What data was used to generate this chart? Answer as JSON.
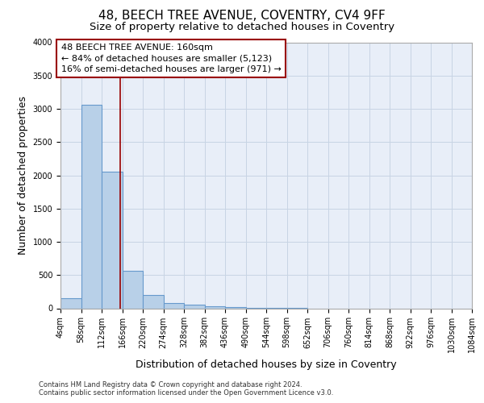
{
  "title": "48, BEECH TREE AVENUE, COVENTRY, CV4 9FF",
  "subtitle": "Size of property relative to detached houses in Coventry",
  "xlabel": "Distribution of detached houses by size in Coventry",
  "ylabel": "Number of detached properties",
  "footer_line1": "Contains HM Land Registry data © Crown copyright and database right 2024.",
  "footer_line2": "Contains public sector information licensed under the Open Government Licence v3.0.",
  "bin_edges": [
    4,
    58,
    112,
    166,
    220,
    274,
    328,
    382,
    436,
    490,
    544,
    598,
    652,
    706,
    760,
    814,
    868,
    922,
    976,
    1030,
    1084
  ],
  "bar_heights": [
    150,
    3060,
    2060,
    560,
    200,
    80,
    55,
    35,
    15,
    5,
    2,
    1,
    0,
    0,
    0,
    0,
    0,
    0,
    0,
    0
  ],
  "bar_color": "#b8d0e8",
  "bar_edge_color": "#6699cc",
  "grid_color": "#c8d4e4",
  "bg_color": "#e8eef8",
  "property_size": 160,
  "vline_color": "#990000",
  "annotation_text": "48 BEECH TREE AVENUE: 160sqm\n← 84% of detached houses are smaller (5,123)\n16% of semi-detached houses are larger (971) →",
  "annotation_box_color": "#990000",
  "ylim": [
    0,
    4000
  ],
  "yticks": [
    0,
    500,
    1000,
    1500,
    2000,
    2500,
    3000,
    3500,
    4000
  ],
  "title_fontsize": 11,
  "subtitle_fontsize": 9.5,
  "axis_label_fontsize": 9,
  "tick_fontsize": 7,
  "annotation_fontsize": 8
}
